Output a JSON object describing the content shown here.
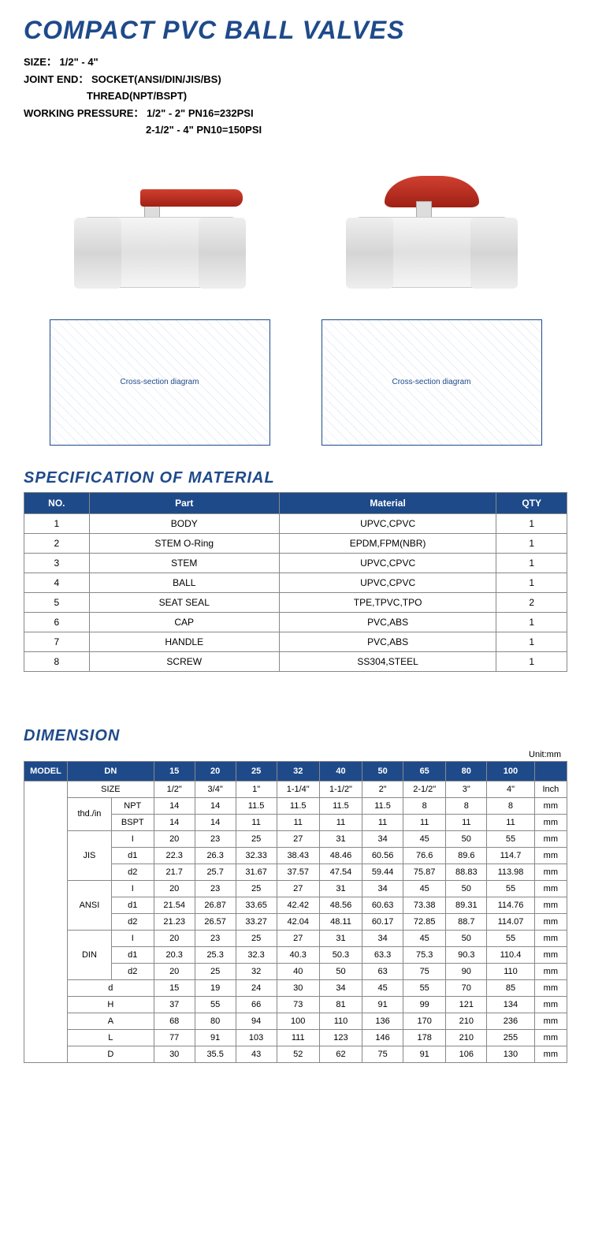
{
  "header": {
    "title": "COMPACT PVC BALL VALVES",
    "size_label": "SIZE：",
    "size_value": "1/2\" - 4\"",
    "joint_label": "JOINT END：",
    "joint_value1": "SOCKET(ANSI/DIN/JIS/BS)",
    "joint_value2": "THREAD(NPT/BSPT)",
    "pressure_label": "WORKING PRESSURE：",
    "pressure_value1": "1/2\" - 2\"    PN16=232PSI",
    "pressure_value2": "2-1/2\" - 4\"   PN10=150PSI"
  },
  "material": {
    "section_title": "SPECIFICATION OF MATERIAL",
    "columns": [
      "NO.",
      "Part",
      "Material",
      "QTY"
    ],
    "rows": [
      [
        "1",
        "BODY",
        "UPVC,CPVC",
        "1"
      ],
      [
        "2",
        "STEM O-Ring",
        "EPDM,FPM(NBR)",
        "1"
      ],
      [
        "3",
        "STEM",
        "UPVC,CPVC",
        "1"
      ],
      [
        "4",
        "BALL",
        "UPVC,CPVC",
        "1"
      ],
      [
        "5",
        "SEAT SEAL",
        "TPE,TPVC,TPO",
        "2"
      ],
      [
        "6",
        "CAP",
        "PVC,ABS",
        "1"
      ],
      [
        "7",
        "HANDLE",
        "PVC,ABS",
        "1"
      ],
      [
        "8",
        "SCREW",
        "SS304,STEEL",
        "1"
      ]
    ]
  },
  "dimension": {
    "section_title": "DIMENSION",
    "unit_text": "Unit:mm",
    "header_model": "MODEL",
    "header_dn": "DN",
    "dn_values": [
      "15",
      "20",
      "25",
      "32",
      "40",
      "50",
      "65",
      "80",
      "100"
    ],
    "header_blank_end": "",
    "size_label": "SIZE",
    "size_values": [
      "1/2\"",
      "3/4\"",
      "1\"",
      "1-1/4\"",
      "1-1/2\"",
      "2\"",
      "2-1/2\"",
      "3\"",
      "4\""
    ],
    "size_unit": "Inch",
    "thd_label": "thd./in",
    "npt_label": "NPT",
    "npt_values": [
      "14",
      "14",
      "11.5",
      "11.5",
      "11.5",
      "11.5",
      "8",
      "8",
      "8"
    ],
    "bspt_label": "BSPT",
    "bspt_values": [
      "14",
      "14",
      "11",
      "11",
      "11",
      "11",
      "11",
      "11",
      "11"
    ],
    "jis_label": "JIS",
    "jis_i": [
      "20",
      "23",
      "25",
      "27",
      "31",
      "34",
      "45",
      "50",
      "55"
    ],
    "jis_d1": [
      "22.3",
      "26.3",
      "32.33",
      "38.43",
      "48.46",
      "60.56",
      "76.6",
      "89.6",
      "114.7"
    ],
    "jis_d2": [
      "21.7",
      "25.7",
      "31.67",
      "37.57",
      "47.54",
      "59.44",
      "75.87",
      "88.83",
      "113.98"
    ],
    "ansi_label": "ANSI",
    "ansi_i": [
      "20",
      "23",
      "25",
      "27",
      "31",
      "34",
      "45",
      "50",
      "55"
    ],
    "ansi_d1": [
      "21.54",
      "26.87",
      "33.65",
      "42.42",
      "48.56",
      "60.63",
      "73.38",
      "89.31",
      "114.76"
    ],
    "ansi_d2": [
      "21.23",
      "26.57",
      "33.27",
      "42.04",
      "48.11",
      "60.17",
      "72.85",
      "88.7",
      "114.07"
    ],
    "din_label": "DIN",
    "din_i": [
      "20",
      "23",
      "25",
      "27",
      "31",
      "34",
      "45",
      "50",
      "55"
    ],
    "din_d1": [
      "20.3",
      "25.3",
      "32.3",
      "40.3",
      "50.3",
      "63.3",
      "75.3",
      "90.3",
      "110.4"
    ],
    "din_d2": [
      "20",
      "25",
      "32",
      "40",
      "50",
      "63",
      "75",
      "90",
      "110"
    ],
    "d_label": "d",
    "d_values": [
      "15",
      "19",
      "24",
      "30",
      "34",
      "45",
      "55",
      "70",
      "85"
    ],
    "h_label": "H",
    "h_values": [
      "37",
      "55",
      "66",
      "73",
      "81",
      "91",
      "99",
      "121",
      "134"
    ],
    "a_label": "A",
    "a_values": [
      "68",
      "80",
      "94",
      "100",
      "110",
      "136",
      "170",
      "210",
      "236"
    ],
    "l_label": "L",
    "l_values": [
      "77",
      "91",
      "103",
      "111",
      "123",
      "146",
      "178",
      "210",
      "255"
    ],
    "dcap_label": "D",
    "dcap_values": [
      "30",
      "35.5",
      "43",
      "52",
      "62",
      "75",
      "91",
      "106",
      "130"
    ],
    "mm": "mm",
    "sub_i": "I",
    "sub_d1": "d1",
    "sub_d2": "d2"
  },
  "colors": {
    "primary": "#1e4a8a",
    "handle": "#c03525",
    "border": "#888888"
  }
}
